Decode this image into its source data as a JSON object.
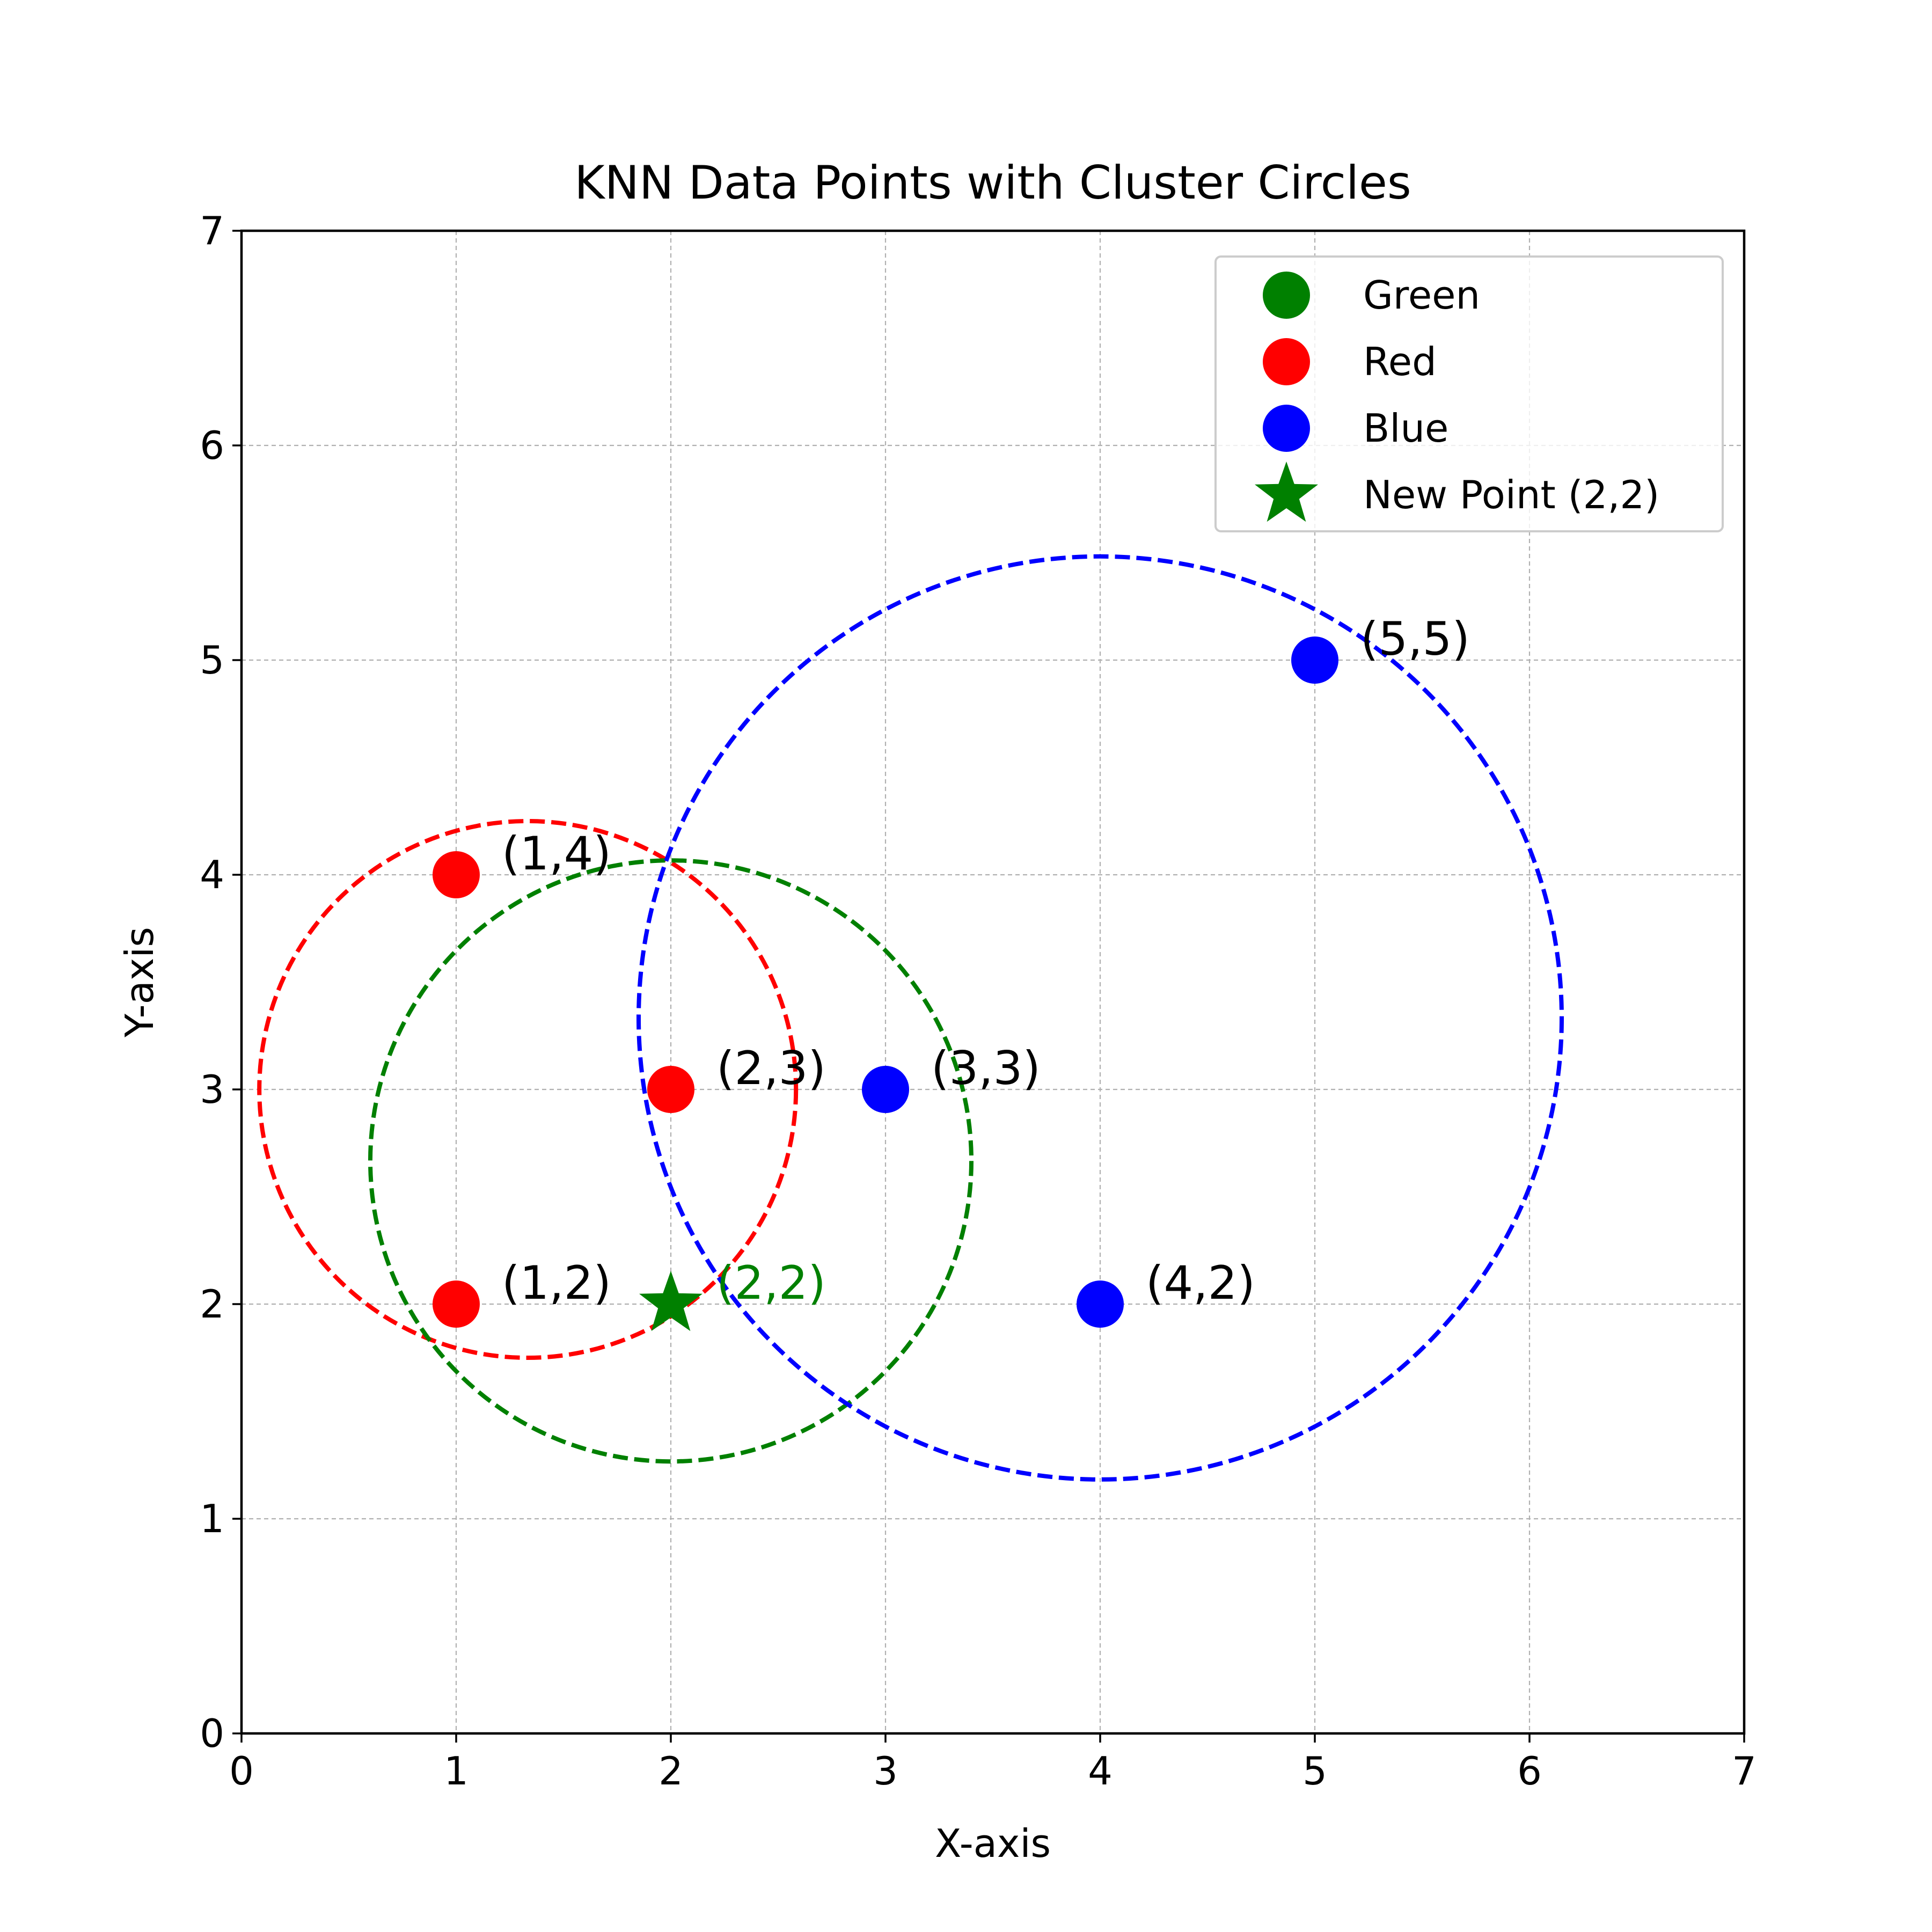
{
  "chart_data": {
    "type": "scatter",
    "title": "KNN Data Points with Cluster Circles",
    "xlabel": "X-axis",
    "ylabel": "Y-axis",
    "xlim": [
      0,
      7
    ],
    "ylim": [
      0,
      7
    ],
    "xticks": [
      "0",
      "1",
      "2",
      "3",
      "4",
      "5",
      "6",
      "7"
    ],
    "yticks": [
      "0",
      "1",
      "2",
      "3",
      "4",
      "5",
      "6",
      "7"
    ],
    "grid": true,
    "legend_position": "top-right",
    "series": [
      {
        "name": "Green",
        "color": "#008000",
        "marker": "circle",
        "points": []
      },
      {
        "name": "Red",
        "color": "#ff0000",
        "marker": "circle",
        "points": [
          {
            "x": 1,
            "y": 2,
            "label": "(1,2)"
          },
          {
            "x": 1,
            "y": 4,
            "label": "(1,4)"
          },
          {
            "x": 2,
            "y": 3,
            "label": "(2,3)"
          }
        ]
      },
      {
        "name": "Blue",
        "color": "#0000ff",
        "marker": "circle",
        "points": [
          {
            "x": 3,
            "y": 3,
            "label": "(3,3)"
          },
          {
            "x": 4,
            "y": 2,
            "label": "(4,2)"
          },
          {
            "x": 5,
            "y": 5,
            "label": "(5,5)"
          }
        ]
      },
      {
        "name": "New Point (2,2)",
        "color": "#008000",
        "marker": "star",
        "points": [
          {
            "x": 2,
            "y": 2,
            "label": "(2,2)"
          }
        ]
      }
    ],
    "circles": [
      {
        "color": "#ff0000",
        "cx": 1.333,
        "cy": 3.0,
        "r": 1.25
      },
      {
        "color": "#008000",
        "cx": 2.0,
        "cy": 2.667,
        "r": 1.4
      },
      {
        "color": "#0000ff",
        "cx": 4.0,
        "cy": 3.333,
        "r": 2.15
      }
    ]
  }
}
